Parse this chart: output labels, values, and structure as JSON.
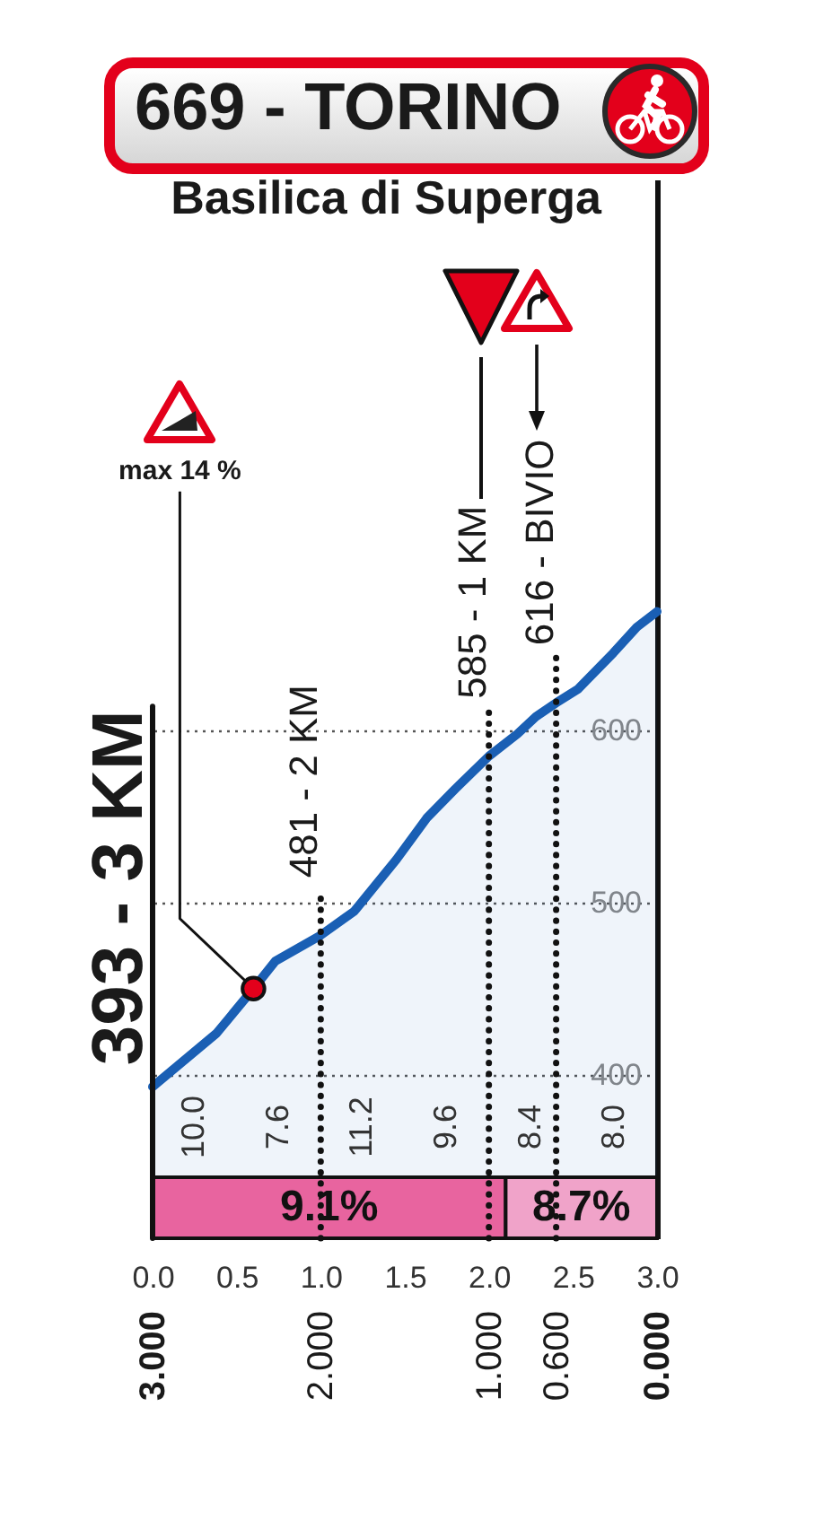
{
  "chart_data": {
    "type": "area",
    "title": "669 - TORINO",
    "subtitle": "Basilica di Superga",
    "x": [
      0,
      0.38,
      0.6,
      0.73,
      1,
      1.2,
      1.45,
      1.63,
      1.8,
      2,
      2.17,
      2.28,
      2.4,
      2.53,
      2.74,
      2.88,
      3
    ],
    "series": [
      {
        "type": "area",
        "color": "#1a5fb4",
        "values": [
          393,
          424,
          450,
          466,
          481,
          495,
          525,
          549,
          566,
          585,
          598,
          608,
          616,
          624,
          645,
          660,
          669
        ]
      },
      {
        "type": "scatter",
        "color": "#e3001b",
        "x": [
          0.6
        ],
        "values": [
          450
        ]
      }
    ],
    "xlim": [
      0,
      3
    ],
    "xticks": [
      {
        "value": 0,
        "label": "0.0"
      },
      0.5,
      {
        "value": 1,
        "label": "1.0"
      },
      1.5,
      {
        "value": 2,
        "label": "2.0"
      },
      2.5,
      {
        "value": 3,
        "label": "3.0"
      }
    ],
    "ylim": [
      305,
      920
    ],
    "yticks": [
      400,
      500,
      600
    ],
    "x2lim": [
      3,
      0
    ],
    "x2ticks": [
      {
        "value": 3,
        "label": "3.000"
      },
      {
        "value": 2,
        "label": "2.000"
      },
      {
        "value": 1,
        "label": "1.000"
      },
      {
        "value": 0.6,
        "label": "0.600"
      },
      {
        "value": 0,
        "label": "0.000"
      }
    ],
    "grid": "y",
    "ref_lines": [
      {
        "axis": "x",
        "value": 0,
        "label": "393 - 3 KM",
        "line_style": "solid"
      },
      {
        "axis": "x",
        "value": 1,
        "label": "481 - 2 KM",
        "line_style": "dotted"
      },
      {
        "axis": "x",
        "value": 2,
        "label": "585 - 1 KM",
        "line_style": "dotted"
      },
      {
        "axis": "x",
        "value": 2.4,
        "label": "616 - BIVIO",
        "line_style": "dotted"
      }
    ],
    "bands": [
      {
        "axis": "x",
        "from": 0,
        "to": 2.1,
        "label": "9.1%",
        "color": "#e8649f"
      },
      {
        "axis": "x",
        "from": 2.1,
        "to": 3,
        "label": "8.7%",
        "color": "#f0a3c9"
      }
    ],
    "annotations": [
      "10.0",
      "7.6",
      "11.2",
      "9.6",
      "8.4",
      "8.0",
      {
        "text": "max 14 %",
        "x": 0.6,
        "y": 450
      }
    ]
  }
}
